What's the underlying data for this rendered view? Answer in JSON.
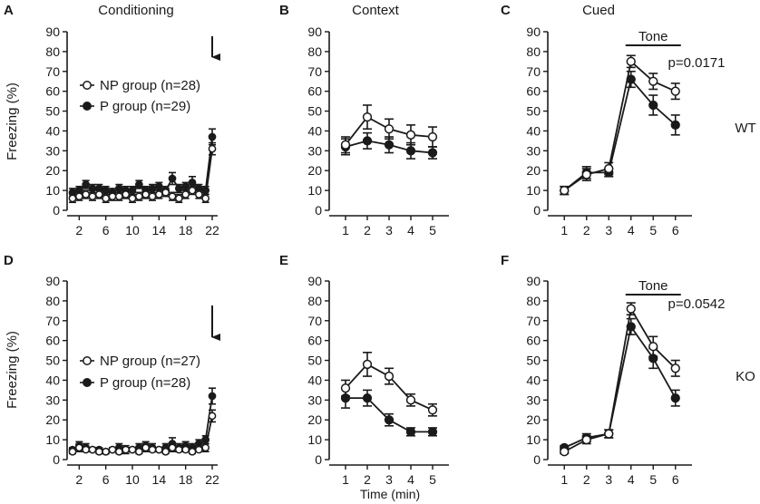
{
  "figure": {
    "ylabel": "Freezing (%)",
    "xlabel": "Time (min)",
    "row_labels": [
      "WT",
      "KO"
    ]
  },
  "chart_data": [
    {
      "id": "A",
      "panel_label": "A",
      "title": "Conditioning",
      "type": "line",
      "ylim": [
        0,
        90
      ],
      "yticks": [
        0,
        10,
        20,
        30,
        40,
        50,
        60,
        70,
        80,
        90
      ],
      "xlim": [
        1,
        22
      ],
      "xticks": [
        2,
        6,
        10,
        14,
        18,
        22
      ],
      "legend": [
        "NP group (n=28)",
        "P group (n=29)"
      ],
      "arrow_at": 22,
      "series": [
        {
          "name": "NP group (n=28)",
          "marker": "open",
          "x": [
            1,
            2,
            3,
            4,
            5,
            6,
            7,
            8,
            9,
            10,
            11,
            12,
            13,
            14,
            15,
            16,
            17,
            18,
            19,
            20,
            21,
            22
          ],
          "values": [
            6,
            7,
            8,
            7,
            8,
            6,
            7,
            7,
            8,
            6,
            7,
            8,
            7,
            8,
            9,
            7,
            6,
            8,
            10,
            8,
            6,
            31
          ],
          "errors": [
            2,
            2,
            2,
            2,
            2,
            2,
            2,
            2,
            2,
            2,
            2,
            2,
            2,
            2,
            2,
            2,
            2,
            2,
            2,
            2,
            2,
            3
          ]
        },
        {
          "name": "P group (n=29)",
          "marker": "filled",
          "x": [
            1,
            2,
            3,
            4,
            5,
            6,
            7,
            8,
            9,
            10,
            11,
            12,
            13,
            14,
            15,
            16,
            17,
            18,
            19,
            20,
            21,
            22
          ],
          "values": [
            9,
            10,
            13,
            11,
            11,
            10,
            9,
            11,
            10,
            10,
            13,
            10,
            11,
            12,
            10,
            16,
            11,
            12,
            14,
            11,
            10,
            37
          ],
          "errors": [
            2,
            2,
            2,
            2,
            2,
            2,
            2,
            2,
            2,
            2,
            2,
            2,
            2,
            2,
            2,
            3,
            2,
            2,
            3,
            2,
            2,
            4
          ]
        }
      ]
    },
    {
      "id": "B",
      "panel_label": "B",
      "title": "Context",
      "type": "line",
      "ylim": [
        0,
        90
      ],
      "yticks": [
        0,
        10,
        20,
        30,
        40,
        50,
        60,
        70,
        80,
        90
      ],
      "xlim": [
        0.5,
        5.5
      ],
      "xticks": [
        1,
        2,
        3,
        4,
        5
      ],
      "series": [
        {
          "name": "NP group",
          "marker": "open",
          "x": [
            1,
            2,
            3,
            4,
            5
          ],
          "values": [
            33,
            47,
            41,
            38,
            37
          ],
          "errors": [
            4,
            6,
            5,
            5,
            5
          ]
        },
        {
          "name": "P group",
          "marker": "filled",
          "x": [
            1,
            2,
            3,
            4,
            5
          ],
          "values": [
            32,
            35,
            33,
            30,
            29
          ],
          "errors": [
            4,
            4,
            4,
            4,
            3
          ]
        }
      ]
    },
    {
      "id": "C",
      "panel_label": "C",
      "title": "Cued",
      "type": "line",
      "ylim": [
        0,
        90
      ],
      "yticks": [
        0,
        10,
        20,
        30,
        40,
        50,
        60,
        70,
        80,
        90
      ],
      "xlim": [
        0.5,
        6.5
      ],
      "xticks": [
        1,
        2,
        3,
        4,
        5,
        6
      ],
      "tone_label": "Tone",
      "tone_range": [
        4,
        6
      ],
      "p_value": "p=0.0171",
      "row_label": "WT",
      "series": [
        {
          "name": "NP group",
          "marker": "open",
          "x": [
            1,
            2,
            3,
            4,
            5,
            6
          ],
          "values": [
            10,
            18,
            21,
            75,
            65,
            60
          ],
          "errors": [
            2,
            3,
            3,
            3,
            4,
            4
          ]
        },
        {
          "name": "P group",
          "marker": "filled",
          "x": [
            1,
            2,
            3,
            4,
            5,
            6
          ],
          "values": [
            10,
            19,
            19,
            66,
            53,
            43
          ],
          "errors": [
            2,
            3,
            2,
            4,
            5,
            5
          ]
        }
      ]
    },
    {
      "id": "D",
      "panel_label": "D",
      "title": "",
      "type": "line",
      "ylim": [
        0,
        90
      ],
      "yticks": [
        0,
        10,
        20,
        30,
        40,
        50,
        60,
        70,
        80,
        90
      ],
      "xlim": [
        1,
        22
      ],
      "xticks": [
        2,
        6,
        10,
        14,
        18,
        22
      ],
      "legend": [
        "NP group (n=27)",
        "P group (n=28)"
      ],
      "arrow_at": 22,
      "series": [
        {
          "name": "NP group (n=27)",
          "marker": "open",
          "x": [
            1,
            2,
            3,
            4,
            5,
            6,
            7,
            8,
            9,
            10,
            11,
            12,
            13,
            14,
            15,
            16,
            17,
            18,
            19,
            20,
            21,
            22
          ],
          "values": [
            4,
            6,
            5,
            5,
            4,
            4,
            5,
            4,
            5,
            5,
            4,
            6,
            5,
            5,
            4,
            6,
            5,
            5,
            4,
            5,
            6,
            22
          ],
          "errors": [
            1,
            2,
            1,
            1,
            1,
            1,
            1,
            1,
            2,
            1,
            1,
            2,
            1,
            1,
            1,
            2,
            1,
            1,
            1,
            1,
            2,
            3
          ]
        },
        {
          "name": "P group (n=28)",
          "marker": "filled",
          "x": [
            1,
            2,
            3,
            4,
            5,
            6,
            7,
            8,
            9,
            10,
            11,
            12,
            13,
            14,
            15,
            16,
            17,
            18,
            19,
            20,
            21,
            22
          ],
          "values": [
            5,
            7,
            6,
            5,
            5,
            4,
            5,
            6,
            5,
            5,
            6,
            7,
            6,
            5,
            6,
            8,
            6,
            7,
            6,
            8,
            10,
            32
          ],
          "errors": [
            1,
            2,
            2,
            1,
            1,
            1,
            1,
            2,
            1,
            1,
            2,
            2,
            2,
            1,
            2,
            3,
            2,
            2,
            2,
            2,
            2,
            4
          ]
        }
      ]
    },
    {
      "id": "E",
      "panel_label": "E",
      "title": "",
      "type": "line",
      "ylim": [
        0,
        90
      ],
      "yticks": [
        0,
        10,
        20,
        30,
        40,
        50,
        60,
        70,
        80,
        90
      ],
      "xlim": [
        0.5,
        5.5
      ],
      "xticks": [
        1,
        2,
        3,
        4,
        5
      ],
      "xlabel": "Time (min)",
      "series": [
        {
          "name": "NP group",
          "marker": "open",
          "x": [
            1,
            2,
            3,
            4,
            5
          ],
          "values": [
            36,
            48,
            42,
            30,
            25
          ],
          "errors": [
            4,
            6,
            4,
            3,
            3
          ]
        },
        {
          "name": "P group",
          "marker": "filled",
          "x": [
            1,
            2,
            3,
            4,
            5
          ],
          "values": [
            31,
            31,
            20,
            14,
            14
          ],
          "errors": [
            5,
            4,
            3,
            2,
            2
          ]
        }
      ]
    },
    {
      "id": "F",
      "panel_label": "F",
      "title": "",
      "type": "line",
      "ylim": [
        0,
        90
      ],
      "yticks": [
        0,
        10,
        20,
        30,
        40,
        50,
        60,
        70,
        80,
        90
      ],
      "xlim": [
        0.5,
        6.5
      ],
      "xticks": [
        1,
        2,
        3,
        4,
        5,
        6
      ],
      "tone_label": "Tone",
      "tone_range": [
        4,
        6
      ],
      "p_value": "p=0.0542",
      "row_label": "KO",
      "series": [
        {
          "name": "NP group",
          "marker": "open",
          "x": [
            1,
            2,
            3,
            4,
            5,
            6
          ],
          "values": [
            4,
            10,
            13,
            76,
            57,
            46
          ],
          "errors": [
            1,
            2,
            2,
            3,
            5,
            4
          ]
        },
        {
          "name": "P group",
          "marker": "filled",
          "x": [
            1,
            2,
            3,
            4,
            5,
            6
          ],
          "values": [
            6,
            11,
            13,
            67,
            51,
            31
          ],
          "errors": [
            1,
            2,
            2,
            4,
            5,
            4
          ]
        }
      ]
    }
  ]
}
